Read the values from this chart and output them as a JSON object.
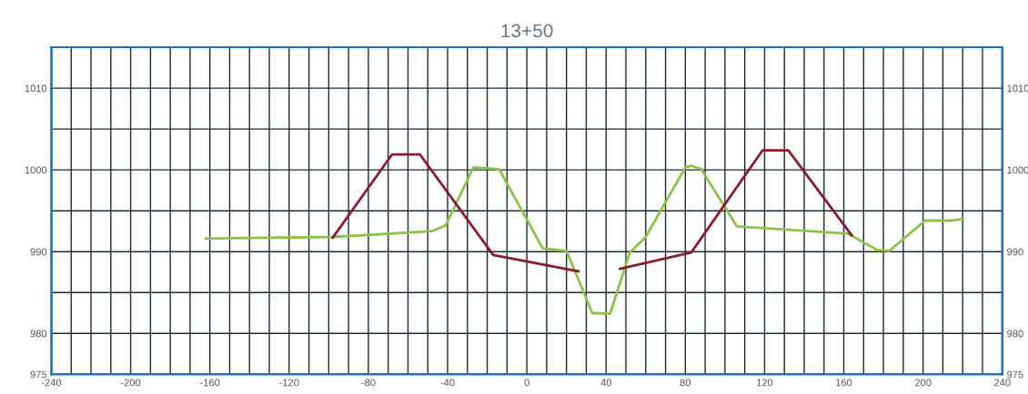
{
  "chart_data": {
    "type": "line",
    "title": "13+50",
    "xlim": [
      -240,
      240
    ],
    "xticks": [
      -240,
      {
        "value": -230,
        "label": null
      },
      {
        "value": -220,
        "label": null
      },
      {
        "value": -210,
        "label": null
      },
      -200,
      {
        "value": -190,
        "label": null
      },
      {
        "value": -180,
        "label": null
      },
      {
        "value": -170,
        "label": null
      },
      -160,
      {
        "value": -150,
        "label": null
      },
      {
        "value": -140,
        "label": null
      },
      {
        "value": -130,
        "label": null
      },
      -120,
      {
        "value": -110,
        "label": null
      },
      {
        "value": -100,
        "label": null
      },
      {
        "value": -90,
        "label": null
      },
      -80,
      {
        "value": -70,
        "label": null
      },
      {
        "value": -60,
        "label": null
      },
      {
        "value": -50,
        "label": null
      },
      -40,
      {
        "value": -30,
        "label": null
      },
      {
        "value": -20,
        "label": null
      },
      {
        "value": -10,
        "label": null
      },
      0,
      {
        "value": 10,
        "label": null
      },
      {
        "value": 20,
        "label": null
      },
      {
        "value": 30,
        "label": null
      },
      40,
      {
        "value": 50,
        "label": null
      },
      {
        "value": 60,
        "label": null
      },
      {
        "value": 70,
        "label": null
      },
      80,
      {
        "value": 90,
        "label": null
      },
      {
        "value": 100,
        "label": null
      },
      {
        "value": 110,
        "label": null
      },
      120,
      {
        "value": 130,
        "label": null
      },
      {
        "value": 140,
        "label": null
      },
      {
        "value": 150,
        "label": null
      },
      160,
      {
        "value": 170,
        "label": null
      },
      {
        "value": 180,
        "label": null
      },
      {
        "value": 190,
        "label": null
      },
      200,
      {
        "value": 210,
        "label": null
      },
      {
        "value": 220,
        "label": null
      },
      {
        "value": 230,
        "label": null
      },
      240
    ],
    "ylim": [
      975,
      1015
    ],
    "yticks": [
      975,
      980,
      {
        "value": 985,
        "label": null
      },
      990,
      {
        "value": 995,
        "label": null
      },
      1000,
      {
        "value": 1005,
        "label": null
      },
      1010
    ],
    "y2lim": [
      975,
      1015
    ],
    "y2ticks": [
      975,
      980,
      {
        "value": 985,
        "label": null
      },
      990,
      {
        "value": 995,
        "label": null
      },
      1000,
      {
        "value": 1005,
        "label": null
      },
      1010
    ],
    "grid": true,
    "marker": "none",
    "line_style": "solid",
    "series": [
      {
        "color": "#8bc34a",
        "x": [
          -162,
          -98,
          -48,
          -41,
          -27,
          -14,
          8,
          20,
          33,
          42,
          52,
          60,
          80,
          83,
          88,
          106,
          162,
          177,
          183,
          201,
          214,
          220
        ],
        "values": [
          991.6,
          991.8,
          992.5,
          993.2,
          1000.3,
          1000.1,
          990.4,
          990.1,
          982.5,
          982.4,
          989.9,
          991.8,
          1000.3,
          1000.5,
          1000.1,
          993.1,
          992.2,
          990.2,
          990.1,
          993.8,
          993.8,
          994.0
        ]
      },
      {
        "color": "#8b1a2b",
        "x": [
          -98,
          -68,
          -54,
          -17,
          26,
          36,
          47,
          83,
          119,
          132,
          164
        ],
        "values": [
          991.7,
          1001.9,
          1001.9,
          989.6,
          987.6,
          null,
          987.9,
          989.9,
          1002.4,
          1002.4,
          992.0
        ]
      }
    ]
  }
}
